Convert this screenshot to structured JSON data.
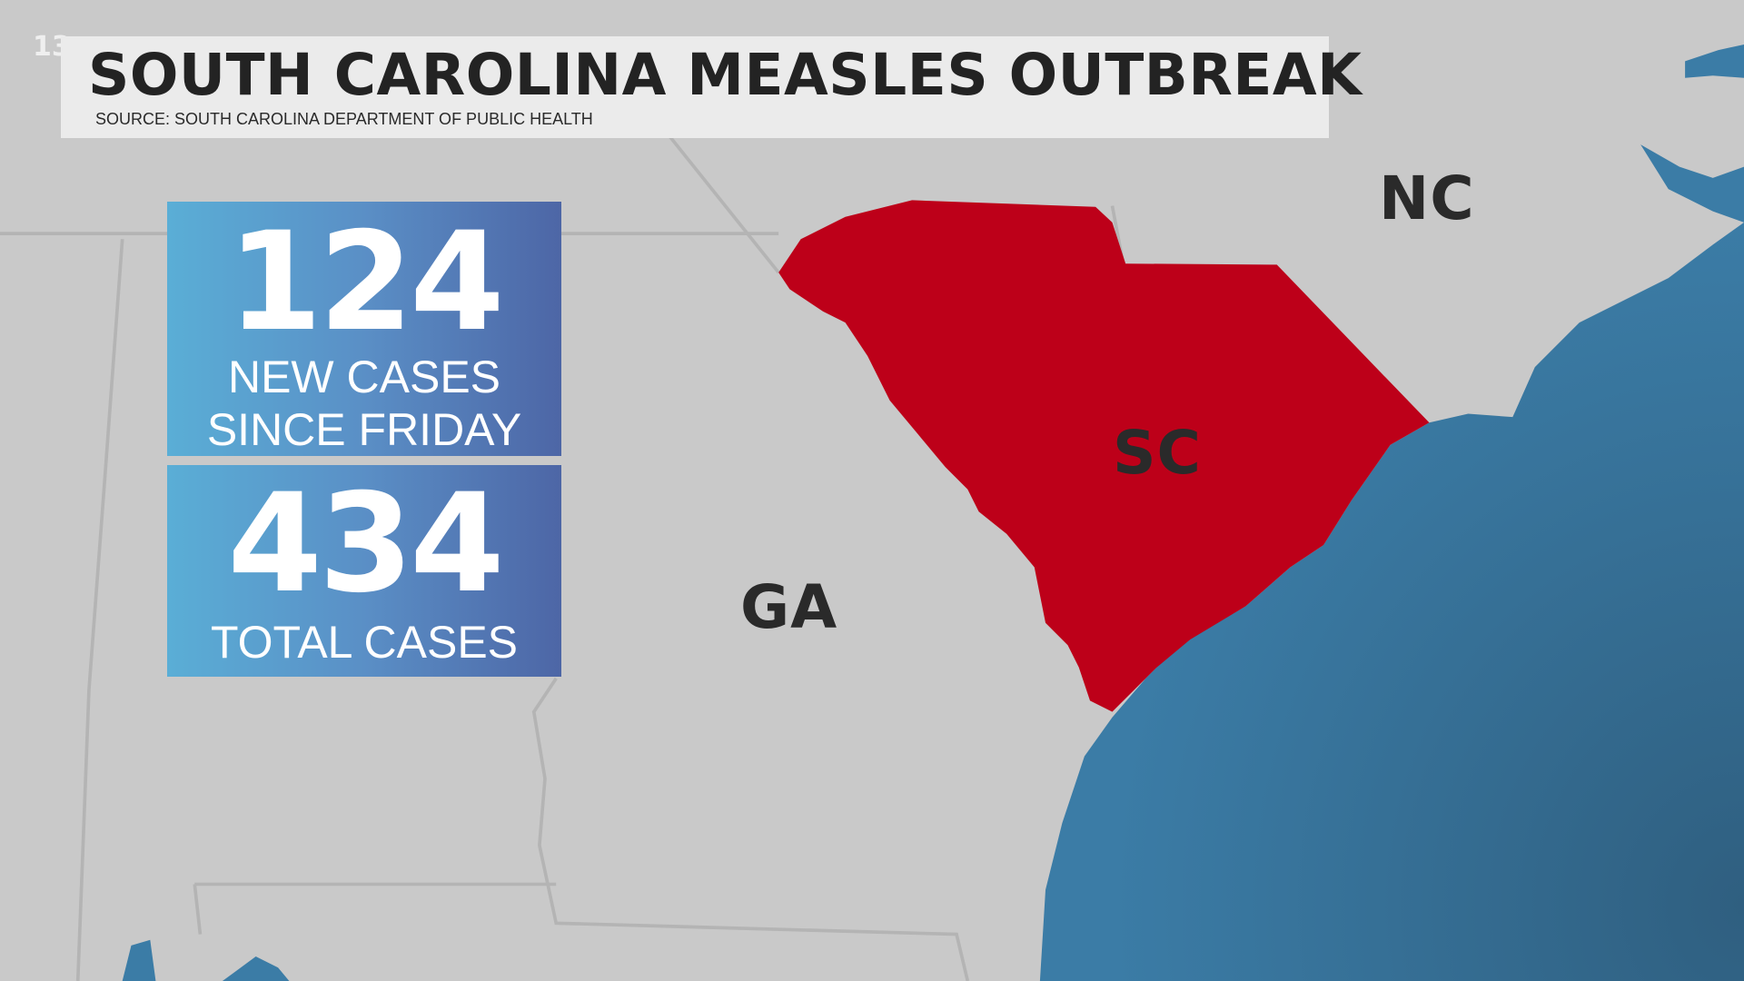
{
  "logo": "13",
  "title": "SOUTH CAROLINA MEASLES OUTBREAK",
  "source": "SOURCE: SOUTH CAROLINA DEPARTMENT OF PUBLIC HEALTH",
  "stats": [
    {
      "value": "124",
      "caption_line1": "NEW CASES",
      "caption_line2": "SINCE FRIDAY"
    },
    {
      "value": "434",
      "caption_line1": "TOTAL CASES"
    }
  ],
  "map": {
    "labels": {
      "nc": "NC",
      "sc": "SC",
      "ga": "GA"
    },
    "colors": {
      "land": "#c9c9c9",
      "highlight": "#bd0019",
      "ocean": "#3a7aa4",
      "border": "#b4b4b4"
    }
  }
}
